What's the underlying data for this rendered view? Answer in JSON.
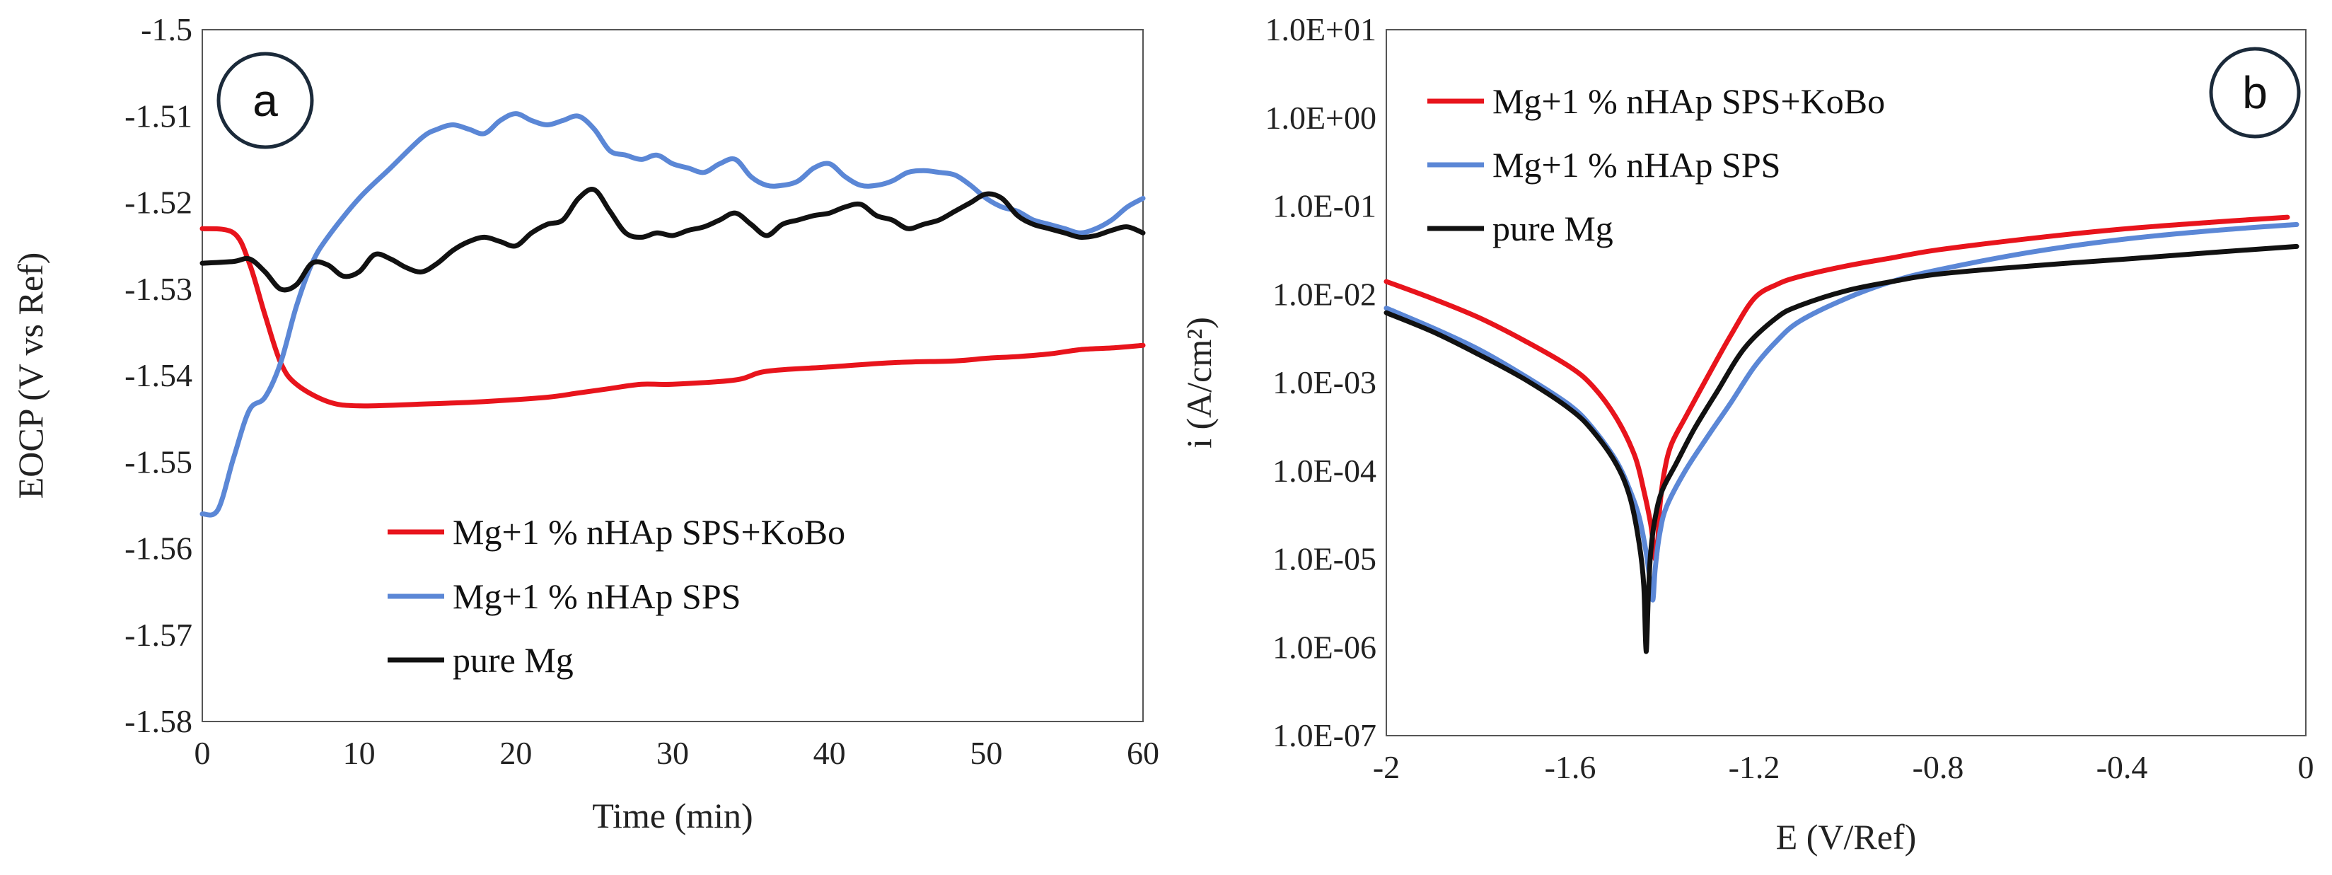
{
  "chart_data": [
    {
      "type": "line",
      "panel_label": "a",
      "xlabel": "Time (min)",
      "ylabel": "EOCP (V vs Ref)",
      "xlim": [
        0,
        60
      ],
      "ylim": [
        -1.58,
        -1.5
      ],
      "x_ticks": [
        0,
        10,
        20,
        30,
        40,
        50,
        60
      ],
      "x_tick_labels": [
        "0",
        "10",
        "20",
        "30",
        "40",
        "50",
        "60"
      ],
      "y_ticks": [
        -1.5,
        -1.51,
        -1.52,
        -1.53,
        -1.54,
        -1.55,
        -1.56,
        -1.57,
        -1.58
      ],
      "y_tick_labels": [
        "-1.5",
        "-1.51",
        "-1.52",
        "-1.53",
        "-1.54",
        "-1.55",
        "-1.56",
        "-1.57",
        "-1.58"
      ],
      "grid": false,
      "legend_position": "bottom-center",
      "series": [
        {
          "name": "Mg+1 % nHAp SPS+KoBo",
          "color": "#e8141c",
          "x": [
            0,
            2,
            3,
            4,
            5,
            6,
            8,
            10,
            14,
            18,
            22,
            24,
            26,
            28,
            30,
            34,
            36,
            40,
            44,
            48,
            50,
            52,
            54,
            56,
            58,
            60
          ],
          "y": [
            -1.523,
            -1.5235,
            -1.527,
            -1.533,
            -1.5385,
            -1.541,
            -1.543,
            -1.5435,
            -1.5433,
            -1.543,
            -1.5425,
            -1.542,
            -1.5415,
            -1.541,
            -1.541,
            -1.5405,
            -1.5395,
            -1.539,
            -1.5385,
            -1.5383,
            -1.538,
            -1.5378,
            -1.5375,
            -1.537,
            -1.5368,
            -1.5365
          ]
        },
        {
          "name": "Mg+1 % nHAp SPS",
          "color": "#5b87d6",
          "x": [
            0,
            1,
            2,
            3,
            4,
            5,
            6,
            7,
            8,
            10,
            12,
            14,
            15,
            16,
            17,
            18,
            19,
            20,
            21,
            22,
            23,
            24,
            25,
            26,
            27,
            28,
            29,
            30,
            31,
            32,
            33,
            34,
            35,
            36,
            37,
            38,
            39,
            40,
            41,
            42,
            43,
            44,
            45,
            46,
            47,
            48,
            49,
            50,
            51,
            52,
            53,
            54,
            55,
            56,
            57,
            58,
            59,
            60
          ],
          "y": [
            -1.556,
            -1.5555,
            -1.5495,
            -1.544,
            -1.5425,
            -1.5385,
            -1.532,
            -1.527,
            -1.524,
            -1.5195,
            -1.516,
            -1.5125,
            -1.5115,
            -1.511,
            -1.5115,
            -1.512,
            -1.5105,
            -1.5097,
            -1.5105,
            -1.511,
            -1.5105,
            -1.51,
            -1.5115,
            -1.514,
            -1.5145,
            -1.515,
            -1.5145,
            -1.5155,
            -1.516,
            -1.5165,
            -1.5155,
            -1.515,
            -1.517,
            -1.518,
            -1.518,
            -1.5175,
            -1.516,
            -1.5155,
            -1.517,
            -1.518,
            -1.518,
            -1.5175,
            -1.5165,
            -1.5163,
            -1.5165,
            -1.5168,
            -1.518,
            -1.5195,
            -1.5205,
            -1.521,
            -1.522,
            -1.5225,
            -1.523,
            -1.5235,
            -1.523,
            -1.522,
            -1.5205,
            -1.5195
          ]
        },
        {
          "name": "pure Mg",
          "color": "#111111",
          "x": [
            0,
            2,
            3,
            4,
            5,
            6,
            7,
            8,
            9,
            10,
            11,
            12,
            13,
            14,
            15,
            16,
            17,
            18,
            19,
            20,
            21,
            22,
            23,
            24,
            25,
            26,
            27,
            28,
            29,
            30,
            31,
            32,
            33,
            34,
            35,
            36,
            37,
            38,
            39,
            40,
            41,
            42,
            43,
            44,
            45,
            46,
            47,
            48,
            49,
            50,
            51,
            52,
            53,
            54,
            55,
            56,
            57,
            58,
            59,
            60
          ],
          "y": [
            -1.527,
            -1.5268,
            -1.5265,
            -1.528,
            -1.53,
            -1.5295,
            -1.527,
            -1.5272,
            -1.5285,
            -1.528,
            -1.526,
            -1.5265,
            -1.5275,
            -1.528,
            -1.527,
            -1.5255,
            -1.5245,
            -1.524,
            -1.5245,
            -1.525,
            -1.5235,
            -1.5225,
            -1.522,
            -1.5195,
            -1.5185,
            -1.521,
            -1.5235,
            -1.524,
            -1.5235,
            -1.5238,
            -1.5232,
            -1.5228,
            -1.522,
            -1.5212,
            -1.5225,
            -1.5238,
            -1.5225,
            -1.522,
            -1.5215,
            -1.5212,
            -1.5205,
            -1.5202,
            -1.5215,
            -1.522,
            -1.523,
            -1.5225,
            -1.522,
            -1.521,
            -1.52,
            -1.519,
            -1.5195,
            -1.5215,
            -1.5225,
            -1.523,
            -1.5235,
            -1.524,
            -1.5238,
            -1.5232,
            -1.5228,
            -1.5235
          ]
        }
      ]
    },
    {
      "type": "line",
      "panel_label": "b",
      "xlabel": "E (V/Ref)",
      "ylabel": "i (A/cm²)",
      "xlim": [
        -2,
        0
      ],
      "ylim": [
        1e-07,
        10
      ],
      "y_scale": "log",
      "x_ticks": [
        -2,
        -1.6,
        -1.2,
        -0.8,
        -0.4,
        0
      ],
      "x_tick_labels": [
        "-2",
        "-1.6",
        "-1.2",
        "-0.8",
        "-0.4",
        "0"
      ],
      "y_ticks": [
        10,
        1,
        0.1,
        0.01,
        0.001,
        0.0001,
        1e-05,
        1e-06,
        1e-07
      ],
      "y_tick_labels": [
        "1.0E+01",
        "1.0E+00",
        "1.0E-01",
        "1.0E-02",
        "1.0E-03",
        "1.0E-04",
        "1.0E-05",
        "1.0E-06",
        "1.0E-07"
      ],
      "grid": false,
      "legend_position": "top-left",
      "series": [
        {
          "name": "Mg+1 % nHAp SPS+KoBo",
          "color": "#e8141c",
          "x": [
            -2,
            -1.9,
            -1.8,
            -1.7,
            -1.6,
            -1.55,
            -1.5,
            -1.46,
            -1.44,
            -1.425,
            -1.415,
            -1.41,
            -1.405,
            -1.395,
            -1.38,
            -1.35,
            -1.3,
            -1.25,
            -1.2,
            -1.15,
            -1.1,
            -1.0,
            -0.9,
            -0.8,
            -0.6,
            -0.4,
            -0.2,
            -0.04
          ],
          "y": [
            0.014,
            0.009,
            0.0055,
            0.003,
            0.0015,
            0.0009,
            0.0004,
            0.00015,
            6e-05,
            2.5e-05,
            1e-05,
            1.5e-05,
            4e-05,
            0.0001,
            0.0002,
            0.0004,
            0.0012,
            0.0035,
            0.009,
            0.013,
            0.016,
            0.021,
            0.026,
            0.032,
            0.043,
            0.055,
            0.066,
            0.075
          ]
        },
        {
          "name": "Mg+1 % nHAp SPS",
          "color": "#5b87d6",
          "x": [
            -2,
            -1.9,
            -1.8,
            -1.7,
            -1.6,
            -1.55,
            -1.5,
            -1.47,
            -1.45,
            -1.435,
            -1.425,
            -1.42,
            -1.415,
            -1.405,
            -1.39,
            -1.35,
            -1.3,
            -1.25,
            -1.2,
            -1.15,
            -1.1,
            -1.0,
            -0.9,
            -0.8,
            -0.6,
            -0.4,
            -0.2,
            -0.02
          ],
          "y": [
            0.007,
            0.0042,
            0.0024,
            0.0012,
            0.00055,
            0.0003,
            0.00013,
            6e-05,
            3e-05,
            1.2e-05,
            5e-06,
            3.5e-06,
            8e-06,
            2e-05,
            4e-05,
            0.0001,
            0.00025,
            0.0006,
            0.0015,
            0.003,
            0.005,
            0.009,
            0.014,
            0.019,
            0.03,
            0.042,
            0.053,
            0.062
          ]
        },
        {
          "name": "pure Mg",
          "color": "#111111",
          "x": [
            -2,
            -1.9,
            -1.8,
            -1.7,
            -1.6,
            -1.55,
            -1.5,
            -1.47,
            -1.45,
            -1.44,
            -1.435,
            -1.43,
            -1.425,
            -1.415,
            -1.4,
            -1.37,
            -1.33,
            -1.28,
            -1.22,
            -1.15,
            -1.1,
            -1.0,
            -0.9,
            -0.8,
            -0.6,
            -0.4,
            -0.2,
            -0.02
          ],
          "y": [
            0.0062,
            0.0038,
            0.0021,
            0.0011,
            0.0005,
            0.00028,
            0.00012,
            5e-05,
            1.5e-05,
            5e-06,
            9e-07,
            4e-06,
            1.2e-05,
            3e-05,
            6e-05,
            0.00012,
            0.0003,
            0.0008,
            0.0025,
            0.0055,
            0.0075,
            0.011,
            0.014,
            0.017,
            0.021,
            0.025,
            0.03,
            0.035
          ]
        }
      ]
    }
  ]
}
